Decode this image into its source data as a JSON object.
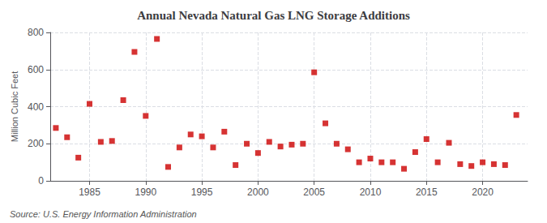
{
  "chart_data": {
    "type": "scatter",
    "title": "Annual Nevada Natural Gas LNG Storage Additions",
    "ylabel": "Million Cubic Feet",
    "annotations": [
      "Source: U.S. Energy Information Administration"
    ],
    "x": [
      1982,
      1983,
      1984,
      1985,
      1986,
      1987,
      1988,
      1989,
      1990,
      1991,
      1992,
      1993,
      1994,
      1995,
      1996,
      1997,
      1998,
      1999,
      2000,
      2001,
      2002,
      2003,
      2004,
      2005,
      2006,
      2007,
      2008,
      2009,
      2010,
      2011,
      2012,
      2013,
      2014,
      2015,
      2016,
      2017,
      2018,
      2019,
      2020,
      2021,
      2022,
      2023
    ],
    "values": [
      285,
      235,
      125,
      415,
      210,
      215,
      435,
      695,
      350,
      765,
      75,
      180,
      250,
      240,
      180,
      265,
      85,
      200,
      150,
      210,
      185,
      195,
      200,
      585,
      310,
      200,
      170,
      100,
      120,
      100,
      100,
      65,
      155,
      225,
      100,
      205,
      90,
      80,
      100,
      90,
      85,
      355
    ],
    "color": "#cc0000",
    "marker": "square",
    "xlim": [
      1981.5,
      2024
    ],
    "xticks": [
      1985,
      1990,
      1995,
      2000,
      2005,
      2010,
      2015,
      2020
    ],
    "ylim": [
      0,
      800
    ],
    "yticks": [
      0,
      200,
      400,
      600,
      800
    ],
    "grid": true
  }
}
